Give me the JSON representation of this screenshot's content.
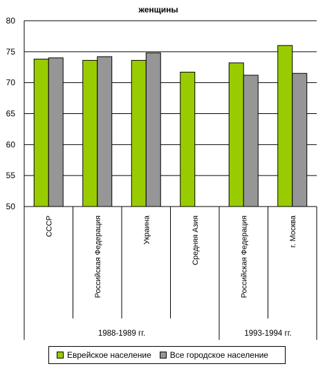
{
  "chart_data": {
    "type": "bar",
    "title": "женщины",
    "xlabel": "",
    "ylabel": "",
    "ylim": [
      50,
      80
    ],
    "yticks": [
      "50",
      "55",
      "60",
      "65",
      "70",
      "75",
      "80"
    ],
    "grid": true,
    "legend_position": "bottom",
    "categories": [
      "СССР",
      "Российская Федерация",
      "Украина",
      "Средняя Азия",
      "Российская Федерация",
      "г. Москва"
    ],
    "groups": [
      {
        "label": "1988-1989  гг.",
        "categories": [
          "СССР",
          "Российская Федерация",
          "Украина",
          "Средняя Азия"
        ]
      },
      {
        "label": "1993-1994  гг.",
        "categories": [
          "Российская Федерация",
          "г. Москва"
        ]
      }
    ],
    "series": [
      {
        "name": "Еврейское население",
        "color": "#99cc00",
        "values": [
          73.8,
          73.6,
          73.6,
          71.7,
          73.2,
          76.0
        ]
      },
      {
        "name": "Все городское население",
        "color": "#969696",
        "values": [
          74.0,
          74.2,
          74.8,
          null,
          71.2,
          71.5
        ]
      }
    ]
  }
}
